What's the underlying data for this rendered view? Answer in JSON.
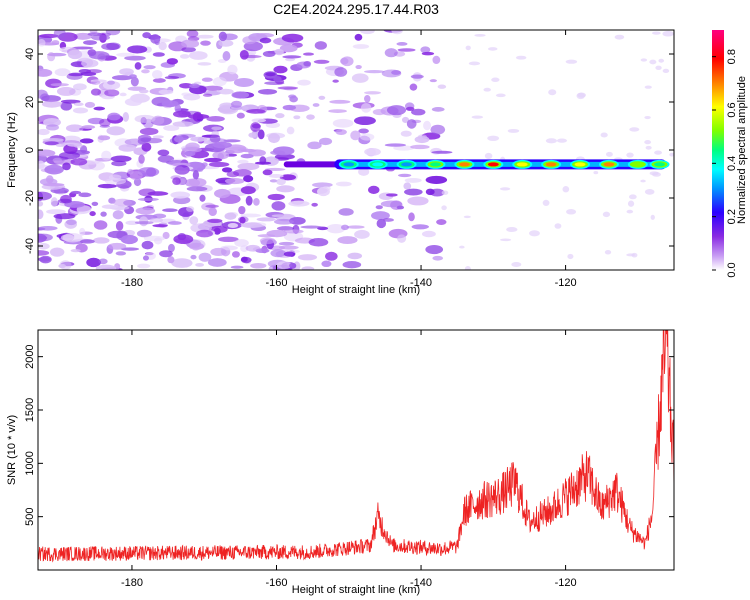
{
  "title": "C2E4.2024.295.17.44.R03",
  "chart_data": [
    {
      "type": "heatmap",
      "xlabel": "Height of straight line (km)",
      "ylabel": "Frequency (Hz)",
      "xlim": [
        -193,
        -105
      ],
      "ylim": [
        -50,
        50
      ],
      "xticks": [
        -180,
        -160,
        -140,
        -120
      ],
      "yticks": [
        -40,
        -20,
        0,
        20,
        40
      ],
      "colorbar": {
        "label": "Normalized spectral amplitude",
        "range": [
          0.0,
          0.9
        ],
        "ticks": [
          "0.0",
          "0.2",
          "0.4",
          "0.6",
          "0.8"
        ],
        "colormap": [
          "#ffffff",
          "#c79bf3",
          "#8a2be2",
          "#2b00ff",
          "#0096ff",
          "#00ffff",
          "#00ff7f",
          "#7fff00",
          "#ffff00",
          "#ff8000",
          "#ff0000",
          "#ff0080"
        ]
      },
      "signal": {
        "frequency_hz": -6,
        "x_start_km": -159,
        "x_end_km": -106,
        "strong_from_km": -152,
        "peak_centers_km": [
          -150,
          -146,
          -142,
          -138,
          -134,
          -130,
          -126,
          -122,
          -118,
          -114,
          -110,
          -107
        ],
        "peak_amplitudes": [
          0.35,
          0.4,
          0.35,
          0.55,
          0.75,
          0.8,
          0.7,
          0.75,
          0.7,
          0.72,
          0.6,
          0.55
        ]
      },
      "noise_region_km": [
        -193,
        -137
      ],
      "noise_amplitude": 0.2
    },
    {
      "type": "line",
      "xlabel": "Height of straight line (km)",
      "ylabel": "SNR (10 * v/v)",
      "xlim": [
        -193,
        -105
      ],
      "ylim": [
        0,
        2250
      ],
      "xticks": [
        -180,
        -160,
        -140,
        -120
      ],
      "yticks": [
        500,
        1000,
        1500,
        2000
      ],
      "color": "#ee2222",
      "key_points": {
        "x": [
          -193,
          -155,
          -147,
          -146,
          -144,
          -137,
          -135,
          -134,
          -132,
          -129,
          -127,
          -125,
          -122,
          -119,
          -117,
          -115,
          -113,
          -111,
          -109,
          -108,
          -106.5,
          -106,
          -105.5,
          -105
        ],
        "y": [
          150,
          170,
          230,
          500,
          230,
          200,
          220,
          550,
          640,
          700,
          820,
          450,
          560,
          750,
          900,
          580,
          750,
          380,
          250,
          520,
          1900,
          2100,
          1500,
          1000
        ]
      }
    }
  ]
}
